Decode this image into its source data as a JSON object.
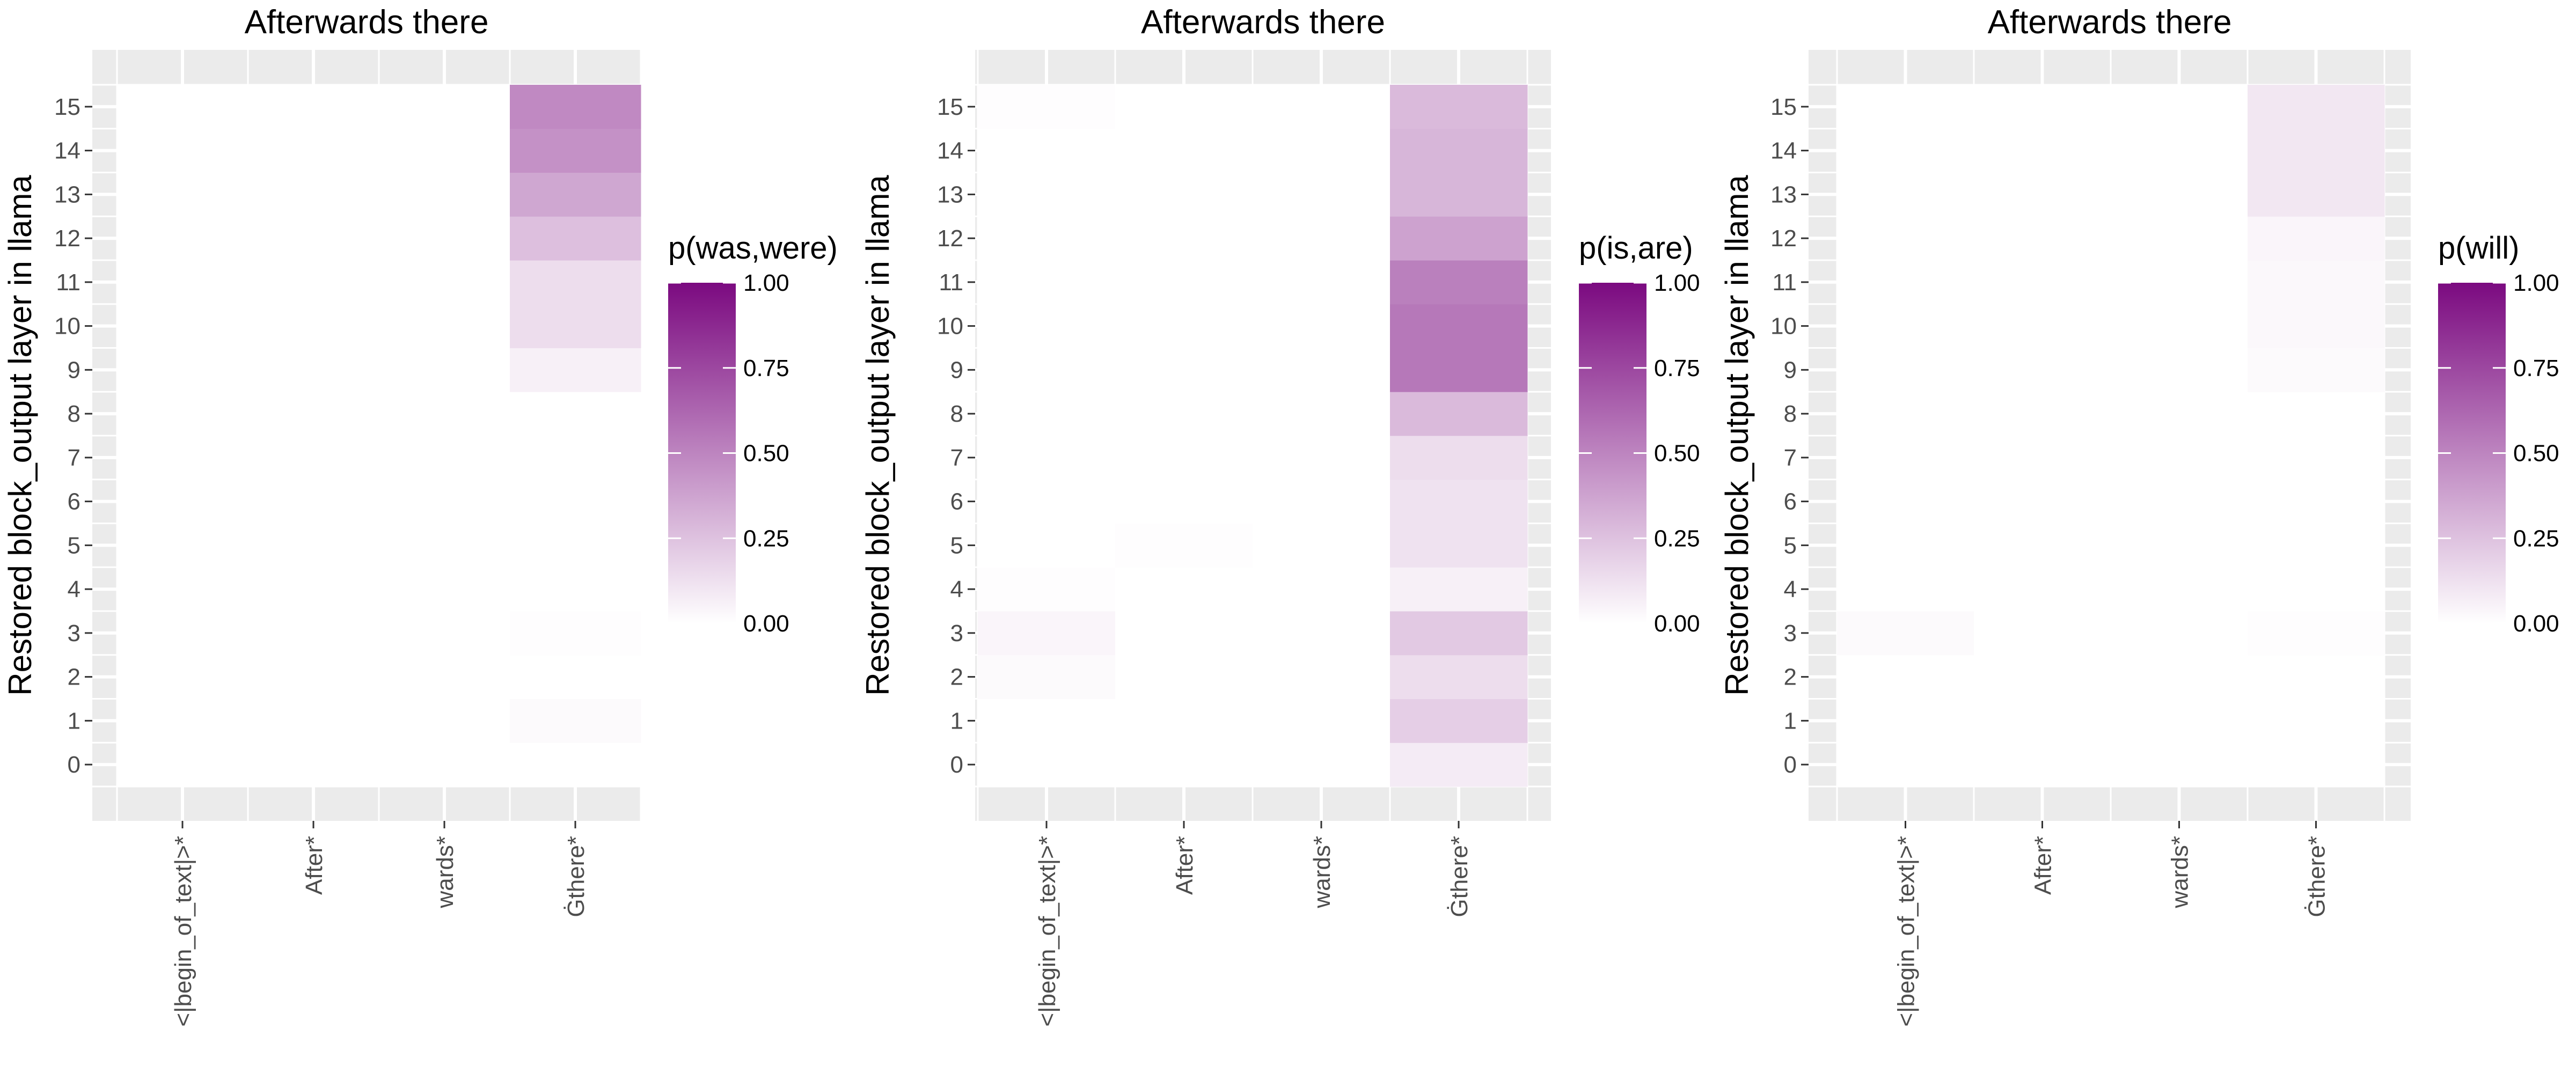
{
  "chart_data": [
    {
      "type": "heatmap",
      "title": "Afterwards there",
      "xlabel": "",
      "ylabel": "Restored block_output layer in llama",
      "x_categories": [
        "<|begin_of_text|>*",
        "After*",
        "wards*",
        "Ġthere*"
      ],
      "y_categories": [
        "0",
        "1",
        "2",
        "3",
        "4",
        "5",
        "6",
        "7",
        "8",
        "9",
        "10",
        "11",
        "12",
        "13",
        "14",
        "15"
      ],
      "values": [
        [
          0.0,
          0.0,
          0.0,
          0.0,
          0.0,
          0.0,
          0.0,
          0.0,
          0.0,
          0.0,
          0.0,
          0.0,
          0.0,
          0.0,
          0.0,
          0.0
        ],
        [
          0.0,
          0.0,
          0.0,
          0.0,
          0.0,
          0.0,
          0.0,
          0.0,
          0.0,
          0.0,
          0.0,
          0.0,
          0.0,
          0.0,
          0.0,
          0.0
        ],
        [
          0.0,
          0.0,
          0.0,
          0.0,
          0.0,
          0.0,
          0.0,
          0.0,
          0.0,
          0.0,
          0.0,
          0.0,
          0.0,
          0.0,
          0.0,
          0.0
        ],
        [
          0.0,
          0.02,
          0.0,
          0.01,
          0.0,
          0.0,
          0.0,
          0.0,
          0.0,
          0.06,
          0.14,
          0.14,
          0.26,
          0.36,
          0.45,
          0.48
        ]
      ],
      "legend": {
        "title": "p(was,were)",
        "ticks": [
          0.0,
          0.25,
          0.5,
          0.75,
          1.0
        ],
        "tick_labels": [
          "0.00",
          "0.25",
          "0.50",
          "0.75",
          "1.00"
        ],
        "placement": "right"
      },
      "color_range": [
        "#ffffff",
        "#7b0a80"
      ],
      "value_range": [
        0,
        1
      ],
      "grid": true
    },
    {
      "type": "heatmap",
      "title": "Afterwards there",
      "xlabel": "",
      "ylabel": "Restored block_output layer in llama",
      "x_categories": [
        "<|begin_of_text|>*",
        "After*",
        "wards*",
        "Ġthere*"
      ],
      "y_categories": [
        "0",
        "1",
        "2",
        "3",
        "4",
        "5",
        "6",
        "7",
        "8",
        "9",
        "10",
        "11",
        "12",
        "13",
        "14",
        "15"
      ],
      "values": [
        [
          0.0,
          0.0,
          0.02,
          0.04,
          0.01,
          0.0,
          0.0,
          0.0,
          0.0,
          0.0,
          0.0,
          0.0,
          0.0,
          0.0,
          0.0,
          0.01
        ],
        [
          0.0,
          0.0,
          0.0,
          0.0,
          0.0,
          0.01,
          0.0,
          0.0,
          0.0,
          0.0,
          0.0,
          0.0,
          0.0,
          0.0,
          0.0,
          0.0
        ],
        [
          0.0,
          0.0,
          0.0,
          0.0,
          0.0,
          0.0,
          0.0,
          0.0,
          0.0,
          0.0,
          0.0,
          0.0,
          0.0,
          0.0,
          0.0,
          0.0
        ],
        [
          0.08,
          0.2,
          0.14,
          0.22,
          0.06,
          0.12,
          0.12,
          0.14,
          0.28,
          0.55,
          0.55,
          0.52,
          0.38,
          0.3,
          0.3,
          0.28
        ]
      ],
      "legend": {
        "title": "p(is,are)",
        "ticks": [
          0.0,
          0.25,
          0.5,
          0.75,
          1.0
        ],
        "tick_labels": [
          "0.00",
          "0.25",
          "0.50",
          "0.75",
          "1.00"
        ],
        "placement": "right"
      },
      "color_range": [
        "#ffffff",
        "#7b0a80"
      ],
      "value_range": [
        0,
        1
      ],
      "grid": true
    },
    {
      "type": "heatmap",
      "title": "Afterwards there",
      "xlabel": "",
      "ylabel": "Restored block_output layer in llama",
      "x_categories": [
        "<|begin_of_text|>*",
        "After*",
        "wards*",
        "Ġthere*"
      ],
      "y_categories": [
        "0",
        "1",
        "2",
        "3",
        "4",
        "5",
        "6",
        "7",
        "8",
        "9",
        "10",
        "11",
        "12",
        "13",
        "14",
        "15"
      ],
      "values": [
        [
          0.0,
          0.0,
          0.0,
          0.02,
          0.0,
          0.0,
          0.0,
          0.0,
          0.0,
          0.0,
          0.0,
          0.0,
          0.0,
          0.0,
          0.0,
          0.0
        ],
        [
          0.0,
          0.0,
          0.0,
          0.0,
          0.0,
          0.0,
          0.0,
          0.0,
          0.0,
          0.0,
          0.0,
          0.0,
          0.0,
          0.0,
          0.0,
          0.0
        ],
        [
          0.0,
          0.0,
          0.0,
          0.0,
          0.0,
          0.0,
          0.0,
          0.0,
          0.0,
          0.0,
          0.0,
          0.0,
          0.0,
          0.0,
          0.0,
          0.0
        ],
        [
          0.0,
          0.0,
          0.0,
          0.01,
          0.0,
          0.0,
          0.0,
          0.0,
          0.0,
          0.02,
          0.03,
          0.03,
          0.04,
          0.1,
          0.1,
          0.1
        ]
      ],
      "legend": {
        "title": "p(will)",
        "ticks": [
          0.0,
          0.25,
          0.5,
          0.75,
          1.0
        ],
        "tick_labels": [
          "0.00",
          "0.25",
          "0.50",
          "0.75",
          "1.00"
        ],
        "placement": "right"
      },
      "color_range": [
        "#ffffff",
        "#7b0a80"
      ],
      "value_range": [
        0,
        1
      ],
      "grid": true
    }
  ]
}
